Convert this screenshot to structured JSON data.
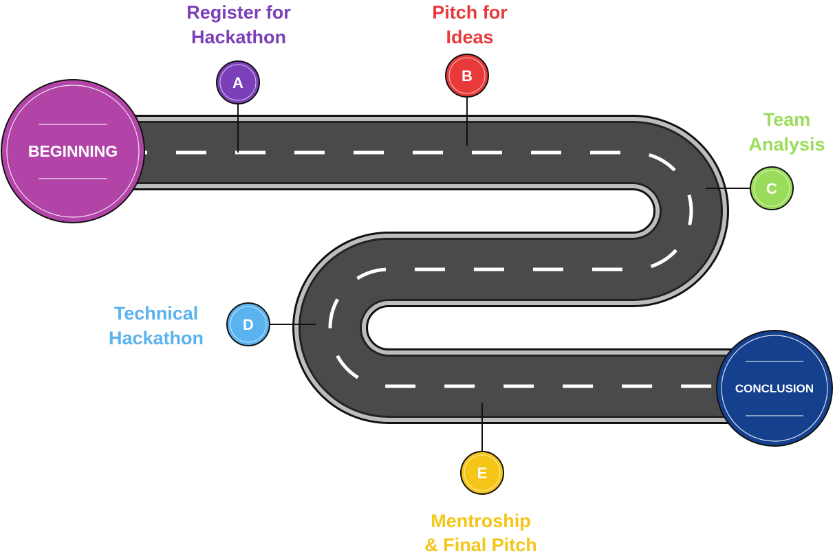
{
  "start": {
    "label": "BEGINNING",
    "color": "#b244a8"
  },
  "end": {
    "label": "CONCLUSION",
    "color": "#14408e"
  },
  "road": {
    "asphalt": "#4a4a4a",
    "edge": "#111111",
    "curb": "#bdbdbd",
    "dash": "#ffffff"
  },
  "milestones": [
    {
      "letter": "A",
      "title_line1": "Register for",
      "title_line2": "Hackathon",
      "color": "#7b3fb8"
    },
    {
      "letter": "B",
      "title_line1": "Pitch for",
      "title_line2": "Ideas",
      "color": "#e83a3a"
    },
    {
      "letter": "C",
      "title_line1": "Team",
      "title_line2": "Analysis",
      "color": "#9bdc5a"
    },
    {
      "letter": "D",
      "title_line1": "Technical",
      "title_line2": "Hackathon",
      "color": "#5ab2ee"
    },
    {
      "letter": "E",
      "title_line1": "Mentroship",
      "title_line2": "& Final Pitch",
      "color": "#f5c518"
    }
  ]
}
